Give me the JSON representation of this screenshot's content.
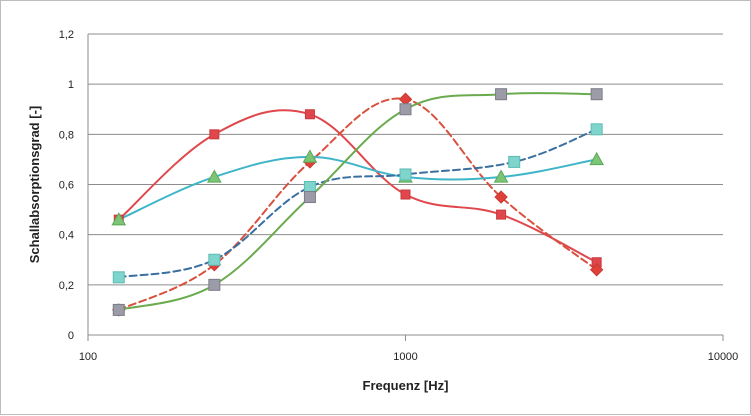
{
  "chart_data": {
    "type": "line",
    "title": "",
    "xlabel": "Frequenz [Hz]",
    "ylabel": "Schallabsorptionsgrad [-]",
    "xscale": "log",
    "xlim": [
      100,
      10000
    ],
    "ylim": [
      0,
      1.2
    ],
    "x_ticks": [
      100,
      1000,
      10000
    ],
    "x_tick_labels": [
      "100",
      "1000",
      "10000"
    ],
    "y_ticks": [
      0,
      0.2,
      0.4,
      0.6,
      0.8,
      1.0,
      1.2
    ],
    "y_tick_labels": [
      "0",
      "0,2",
      "0,4",
      "0,6",
      "0,8",
      "1",
      "1,2"
    ],
    "grid": "horizontal",
    "legend": "none",
    "series": [
      {
        "color": "#e0474c",
        "line_style": "solid",
        "marker": "square",
        "x": [
          125,
          250,
          500,
          1000,
          2000,
          4000
        ],
        "y": [
          0.46,
          0.8,
          0.88,
          0.56,
          0.48,
          0.29
        ]
      },
      {
        "color": "#d9503f",
        "line_style": "dashed",
        "marker": "diamond",
        "x": [
          125,
          250,
          500,
          1000,
          2000,
          4000
        ],
        "y": [
          0.1,
          0.28,
          0.69,
          0.94,
          0.55,
          0.26
        ]
      },
      {
        "color": "#3fb5c8",
        "line_style": "solid",
        "marker": "triangle",
        "x": [
          125,
          250,
          500,
          1000,
          2000,
          4000
        ],
        "y": [
          0.46,
          0.63,
          0.71,
          0.63,
          0.63,
          0.7
        ]
      },
      {
        "color": "#3a6fa0",
        "line_style": "dashed",
        "marker": "square",
        "x": [
          125,
          250,
          500,
          1000,
          2200,
          4000
        ],
        "y": [
          0.23,
          0.3,
          0.59,
          0.64,
          0.69,
          0.82
        ]
      },
      {
        "color": "#6aab4e",
        "line_style": "solid",
        "marker": "square",
        "x": [
          125,
          250,
          500,
          1000,
          2000,
          4000
        ],
        "y": [
          0.1,
          0.2,
          0.55,
          0.9,
          0.96,
          0.96
        ]
      }
    ],
    "marker_colors": {
      "red-square": "#e0474c",
      "red-diamond": "#e0403a",
      "green-triangle": "#7cc576",
      "teal-square": "#7fd4cc",
      "grey-square": "#9c9ca8"
    }
  }
}
